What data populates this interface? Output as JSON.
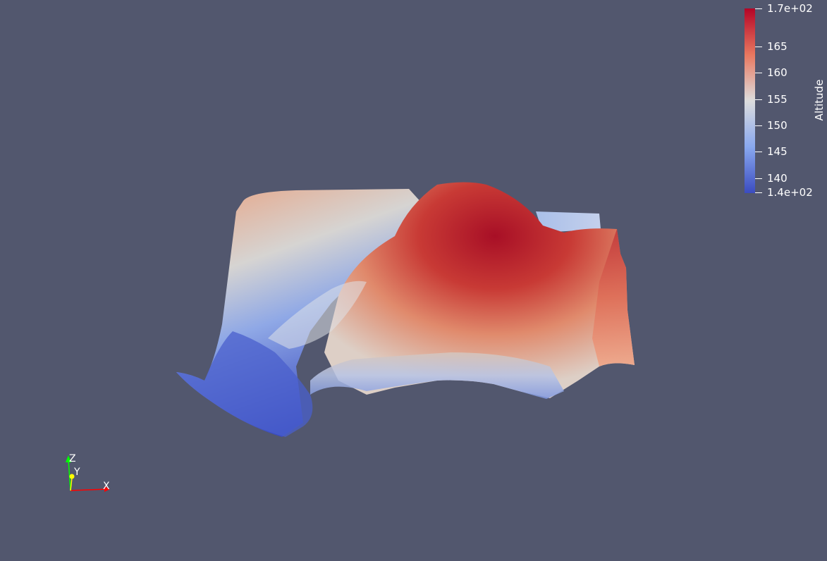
{
  "scalar_bar": {
    "title": "Altitude",
    "max_label": "1.7e+02",
    "min_label": "1.4e+02",
    "tick_labels": [
      "165",
      "160",
      "155",
      "150",
      "145",
      "140"
    ],
    "color_min": "#3b4cc0",
    "color_mid": "#dddddd",
    "color_max": "#b40426"
  },
  "axes": {
    "x_label": "X",
    "y_label": "Y",
    "z_label": "Z",
    "x_color": "#ff0000",
    "y_color": "#ffff00",
    "z_color": "#00ff00"
  },
  "background_color": "#52576e"
}
